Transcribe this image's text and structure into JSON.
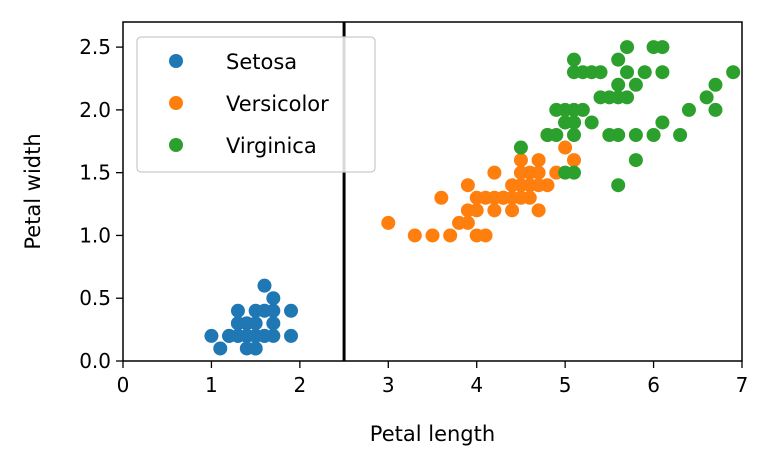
{
  "chart_data": {
    "type": "scatter",
    "title": "",
    "xlabel": "Petal length",
    "ylabel": "Petal width",
    "xlim": [
      0,
      7
    ],
    "ylim": [
      0,
      2.7
    ],
    "x_ticks": [
      0,
      1,
      2,
      3,
      4,
      5,
      6,
      7
    ],
    "x_tick_labels": [
      "0",
      "1",
      "2",
      "3",
      "4",
      "5",
      "6",
      "7"
    ],
    "y_ticks": [
      0.0,
      0.5,
      1.0,
      1.5,
      2.0,
      2.5
    ],
    "y_tick_labels": [
      "0.0",
      "0.5",
      "1.0",
      "1.5",
      "2.0",
      "2.5"
    ],
    "grid": false,
    "legend_position": "top-left",
    "decision_boundary": {
      "orientation": "vertical",
      "x": 2.5,
      "color": "#000000"
    },
    "series": [
      {
        "name": "Setosa",
        "color": "#1f77b4",
        "points": [
          [
            1.0,
            0.2
          ],
          [
            1.1,
            0.1
          ],
          [
            1.2,
            0.2
          ],
          [
            1.3,
            0.2
          ],
          [
            1.3,
            0.3
          ],
          [
            1.3,
            0.4
          ],
          [
            1.4,
            0.1
          ],
          [
            1.4,
            0.2
          ],
          [
            1.4,
            0.3
          ],
          [
            1.5,
            0.1
          ],
          [
            1.5,
            0.2
          ],
          [
            1.5,
            0.4
          ],
          [
            1.6,
            0.2
          ],
          [
            1.6,
            0.4
          ],
          [
            1.6,
            0.6
          ],
          [
            1.7,
            0.2
          ],
          [
            1.7,
            0.3
          ],
          [
            1.7,
            0.4
          ],
          [
            1.7,
            0.5
          ],
          [
            1.9,
            0.2
          ],
          [
            1.9,
            0.4
          ],
          [
            1.2,
            0.2
          ],
          [
            1.4,
            0.2
          ],
          [
            1.5,
            0.2
          ],
          [
            1.3,
            0.2
          ],
          [
            1.6,
            0.2
          ],
          [
            1.5,
            0.3
          ],
          [
            1.4,
            0.3
          ],
          [
            1.3,
            0.3
          ],
          [
            1.5,
            0.1
          ]
        ]
      },
      {
        "name": "Versicolor",
        "color": "#ff7f0e",
        "points": [
          [
            3.0,
            1.1
          ],
          [
            3.3,
            1.0
          ],
          [
            3.5,
            1.0
          ],
          [
            3.6,
            1.3
          ],
          [
            3.7,
            1.0
          ],
          [
            3.8,
            1.1
          ],
          [
            3.9,
            1.1
          ],
          [
            3.9,
            1.2
          ],
          [
            3.9,
            1.4
          ],
          [
            4.0,
            1.0
          ],
          [
            4.0,
            1.2
          ],
          [
            4.0,
            1.3
          ],
          [
            4.1,
            1.0
          ],
          [
            4.1,
            1.3
          ],
          [
            4.2,
            1.2
          ],
          [
            4.2,
            1.3
          ],
          [
            4.2,
            1.5
          ],
          [
            4.3,
            1.3
          ],
          [
            4.4,
            1.2
          ],
          [
            4.4,
            1.3
          ],
          [
            4.4,
            1.4
          ],
          [
            4.5,
            1.3
          ],
          [
            4.5,
            1.5
          ],
          [
            4.5,
            1.6
          ],
          [
            4.6,
            1.3
          ],
          [
            4.6,
            1.4
          ],
          [
            4.6,
            1.5
          ],
          [
            4.7,
            1.2
          ],
          [
            4.7,
            1.4
          ],
          [
            4.7,
            1.5
          ],
          [
            4.7,
            1.6
          ],
          [
            4.8,
            1.4
          ],
          [
            4.8,
            1.8
          ],
          [
            4.9,
            1.5
          ],
          [
            5.0,
            1.7
          ],
          [
            5.1,
            1.6
          ],
          [
            4.5,
            1.4
          ],
          [
            4.3,
            1.3
          ]
        ]
      },
      {
        "name": "Virginica",
        "color": "#2ca02c",
        "points": [
          [
            4.5,
            1.7
          ],
          [
            4.8,
            1.8
          ],
          [
            4.9,
            1.8
          ],
          [
            4.9,
            2.0
          ],
          [
            5.0,
            1.5
          ],
          [
            5.0,
            1.9
          ],
          [
            5.0,
            2.0
          ],
          [
            5.1,
            1.5
          ],
          [
            5.1,
            1.8
          ],
          [
            5.1,
            1.9
          ],
          [
            5.1,
            2.0
          ],
          [
            5.1,
            2.3
          ],
          [
            5.1,
            2.4
          ],
          [
            5.2,
            2.0
          ],
          [
            5.2,
            2.3
          ],
          [
            5.3,
            1.9
          ],
          [
            5.3,
            2.3
          ],
          [
            5.4,
            2.1
          ],
          [
            5.4,
            2.3
          ],
          [
            5.5,
            1.8
          ],
          [
            5.5,
            2.1
          ],
          [
            5.6,
            1.4
          ],
          [
            5.6,
            1.8
          ],
          [
            5.6,
            2.1
          ],
          [
            5.6,
            2.2
          ],
          [
            5.6,
            2.4
          ],
          [
            5.7,
            2.1
          ],
          [
            5.7,
            2.3
          ],
          [
            5.7,
            2.5
          ],
          [
            5.8,
            1.6
          ],
          [
            5.8,
            1.8
          ],
          [
            5.8,
            2.2
          ],
          [
            5.9,
            2.3
          ],
          [
            6.0,
            1.8
          ],
          [
            6.0,
            2.5
          ],
          [
            6.1,
            1.9
          ],
          [
            6.1,
            2.3
          ],
          [
            6.1,
            2.5
          ],
          [
            6.3,
            1.8
          ],
          [
            6.4,
            2.0
          ],
          [
            6.6,
            2.1
          ],
          [
            6.7,
            2.0
          ],
          [
            6.7,
            2.2
          ],
          [
            6.9,
            2.3
          ],
          [
            5.0,
            1.9
          ],
          [
            5.1,
            1.9
          ]
        ]
      }
    ]
  }
}
